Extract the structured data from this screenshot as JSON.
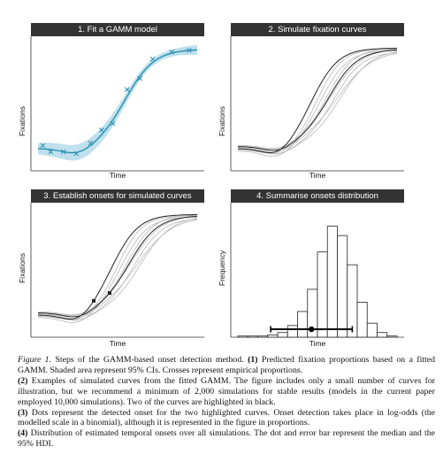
{
  "figure": {
    "panels": [
      {
        "title": "1. Fit a GAMM model",
        "ylabel": "Fixations",
        "xlabel": "Time"
      },
      {
        "title": "2. Simulate fixation curves",
        "ylabel": "Fixations",
        "xlabel": "Time"
      },
      {
        "title": "3. Establish onsets for simulated curves",
        "ylabel": "Fixations",
        "xlabel": "Time"
      },
      {
        "title": "4. Summarise onsets distribution",
        "ylabel": "Frequency",
        "xlabel": "Time"
      }
    ],
    "colors": {
      "fit_line": "#2a8fb0",
      "ci_band": "#bfe0ec",
      "sim_gray": "#b8b8b8",
      "highlight": "#222222",
      "strip": "#333333"
    }
  },
  "caption": {
    "label": "Figure 1.",
    "intro": " Steps of the GAMM-based onset detection method.",
    "item1_num": "(1)",
    "item1": " Predicted fixation proportions based on a fitted GAMM. Shaded area represent 95% CIs. Crosses represent empirical proportions.",
    "item2_num": "(2)",
    "item2": " Examples of simulated curves from the fitted GAMM. The figure includes only a small number of curves for illustration, but we recommend a minimum of 2,000 simulations for stable results (models in the current paper employed 10,000 simulations). Two of the curves are highlighted in black.",
    "item3_num": "(3)",
    "item3": " Dots represent the detected onset for the two highlighted curves. Onset detection takes place in log-odds (the modelled scale in a binomial), although it is represented in the figure in proportions.",
    "item4_num": "(4)",
    "item4": " Distribution of estimated temporal onsets over all simulations. The dot and error bar represent the median and the 95% HDI."
  }
}
